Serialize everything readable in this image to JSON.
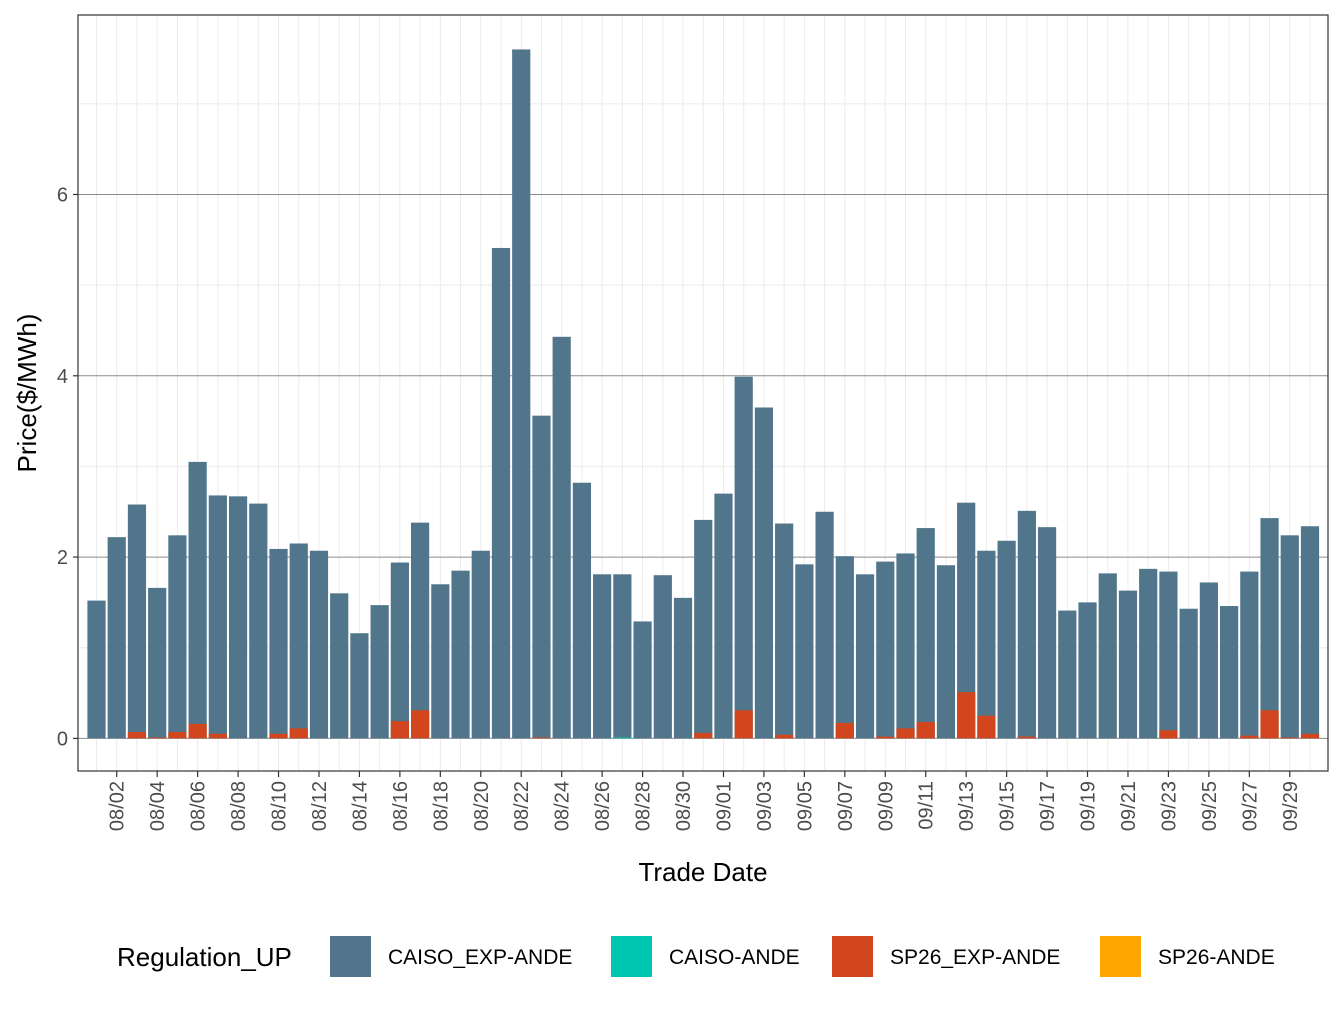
{
  "chart_data": {
    "type": "bar",
    "stacking": "overlay",
    "xlabel": "Trade Date",
    "ylabel": "Price($/MWh)",
    "ylim": [
      -0.36,
      7.98
    ],
    "yticks": [
      0,
      2,
      4,
      6
    ],
    "grid": true,
    "legend_placement": "bottom",
    "legend_title": "Regulation_UP",
    "categories": [
      "08/01",
      "08/02",
      "08/03",
      "08/04",
      "08/05",
      "08/06",
      "08/07",
      "08/08",
      "08/09",
      "08/10",
      "08/11",
      "08/12",
      "08/13",
      "08/14",
      "08/15",
      "08/16",
      "08/17",
      "08/18",
      "08/19",
      "08/20",
      "08/21",
      "08/22",
      "08/23",
      "08/24",
      "08/25",
      "08/26",
      "08/27",
      "08/28",
      "08/29",
      "08/30",
      "08/31",
      "09/01",
      "09/02",
      "09/03",
      "09/04",
      "09/05",
      "09/06",
      "09/07",
      "09/08",
      "09/09",
      "09/10",
      "09/11",
      "09/12",
      "09/13",
      "09/14",
      "09/15",
      "09/16",
      "09/17",
      "09/18",
      "09/19",
      "09/20",
      "09/21",
      "09/22",
      "09/23",
      "09/24",
      "09/25",
      "09/26",
      "09/27",
      "09/28",
      "09/29",
      "09/30"
    ],
    "xtick_labels": [
      "08/02",
      "08/04",
      "08/06",
      "08/08",
      "08/10",
      "08/12",
      "08/14",
      "08/16",
      "08/18",
      "08/20",
      "08/22",
      "08/24",
      "08/26",
      "08/28",
      "08/30",
      "09/01",
      "09/03",
      "09/05",
      "09/07",
      "09/09",
      "09/11",
      "09/13",
      "09/15",
      "09/17",
      "09/19",
      "09/21",
      "09/23",
      "09/25",
      "09/27",
      "09/29"
    ],
    "series": [
      {
        "name": "CAISO_EXP-ANDE",
        "color": "#51768b",
        "values": [
          1.52,
          2.22,
          2.58,
          1.66,
          2.24,
          3.05,
          2.68,
          2.67,
          2.59,
          2.09,
          2.15,
          2.07,
          1.6,
          1.16,
          1.47,
          1.94,
          2.38,
          1.7,
          1.85,
          2.07,
          5.41,
          7.6,
          3.56,
          4.43,
          2.82,
          1.81,
          1.81,
          1.29,
          1.8,
          1.55,
          2.41,
          2.7,
          3.99,
          3.65,
          2.37,
          1.92,
          2.5,
          2.01,
          1.81,
          1.95,
          2.04,
          2.32,
          1.91,
          2.6,
          2.07,
          2.18,
          2.51,
          2.33,
          1.41,
          1.5,
          1.82,
          1.63,
          1.87,
          1.84,
          1.43,
          1.72,
          1.46,
          1.84,
          2.43,
          2.24,
          2.34
        ]
      },
      {
        "name": "CAISO-ANDE",
        "color": "#00c5b0",
        "values": [
          0,
          0,
          0,
          0,
          0,
          0,
          0,
          0,
          0,
          0,
          0,
          0,
          0,
          0,
          0,
          0,
          0,
          0,
          0,
          0,
          0,
          0,
          0,
          0,
          0,
          0,
          0.01,
          0,
          0,
          0,
          0,
          0,
          0,
          0,
          0,
          0,
          0,
          0,
          0,
          0,
          0,
          0,
          0,
          0,
          0,
          0,
          0,
          0,
          0,
          0,
          0,
          0,
          0,
          0,
          0,
          0,
          0,
          0,
          0,
          0,
          0
        ]
      },
      {
        "name": "SP26_EXP-ANDE",
        "color": "#d1461e",
        "values": [
          0,
          0,
          0.07,
          0.01,
          0.07,
          0.16,
          0.05,
          0,
          0,
          0.05,
          0.11,
          0,
          0,
          0,
          0,
          0.19,
          0.31,
          0,
          0,
          0,
          0,
          0,
          0.01,
          0,
          0,
          0,
          0,
          0,
          0,
          0,
          0.06,
          0,
          0.31,
          0,
          0.04,
          0,
          0,
          0.17,
          0,
          0.02,
          0.11,
          0.18,
          0,
          0.51,
          0.25,
          0,
          0.02,
          0,
          0,
          0,
          0,
          0,
          0,
          0.09,
          0,
          0,
          0,
          0.03,
          0.31,
          0.01,
          0.05
        ]
      },
      {
        "name": "SP26-ANDE",
        "color": "#ffa500",
        "values": [
          0,
          0,
          0,
          0,
          0,
          0,
          0,
          0,
          0,
          0,
          0,
          0,
          0,
          0,
          0,
          0,
          0,
          0,
          0,
          0,
          0,
          0,
          0,
          0,
          0,
          0,
          0,
          0,
          0,
          0,
          0,
          0,
          0,
          0,
          0,
          0,
          0,
          0,
          0,
          0,
          0,
          0,
          0,
          0,
          0,
          0,
          0,
          0,
          0,
          0,
          0,
          0,
          0,
          0,
          0,
          0,
          0,
          0,
          0,
          0,
          0
        ]
      }
    ]
  }
}
